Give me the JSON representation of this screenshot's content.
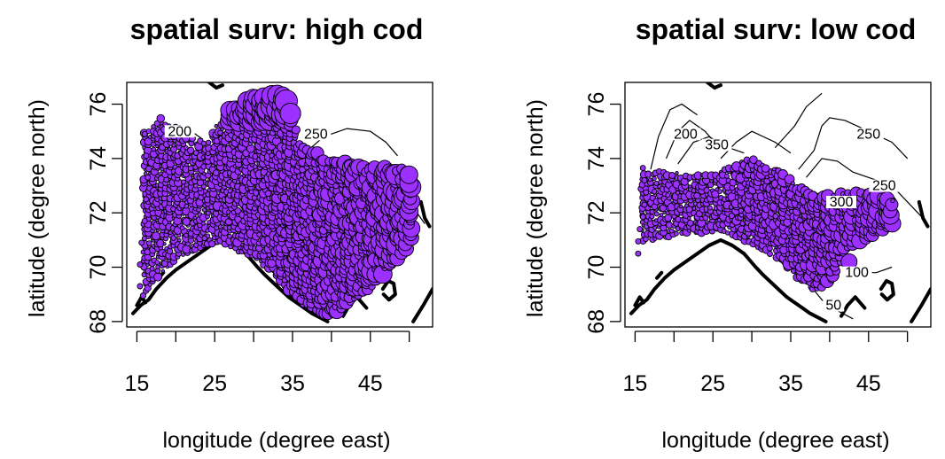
{
  "chart_data": [
    {
      "type": "scatter",
      "title": "spatial surv: high cod",
      "xlabel": "longitude (degree east)",
      "ylabel": "latitude (degree north)",
      "xlim": [
        13.7,
        53.0
      ],
      "ylim": [
        67.8,
        76.8
      ],
      "xticks": [
        15,
        20,
        25,
        30,
        35,
        40,
        45,
        50
      ],
      "xtick_labels": [
        "15",
        "",
        "25",
        "",
        "35",
        "",
        "45",
        ""
      ],
      "yticks": [
        68,
        70,
        72,
        74,
        76
      ],
      "ytick_labels": [
        "68",
        "70",
        "72",
        "74",
        "76"
      ],
      "marker_color": "#9b30ff",
      "contour_labels": [
        {
          "text": "250",
          "x": 38.0,
          "y": 74.8
        },
        {
          "text": "200",
          "x": 20.5,
          "y": 74.9
        }
      ],
      "region": {
        "west_edge": [
          15.4,
          15.4,
          15.6,
          16.0,
          16.2,
          16.4,
          16.2,
          16.0
        ],
        "lon_start": 16.0,
        "lon_end": 50.5,
        "north": [
          [
            16,
            75.0
          ],
          [
            18,
            75.5
          ],
          [
            20,
            75.3
          ],
          [
            22,
            74.8
          ],
          [
            24,
            74.6
          ],
          [
            26,
            75.6
          ],
          [
            28,
            76.0
          ],
          [
            30,
            76.3
          ],
          [
            32,
            76.3
          ],
          [
            34,
            76.4
          ],
          [
            36,
            74.5
          ],
          [
            38,
            74.2
          ],
          [
            40,
            74.0
          ],
          [
            42,
            73.9
          ],
          [
            44,
            73.8
          ],
          [
            46,
            73.7
          ],
          [
            48,
            73.7
          ],
          [
            50.5,
            73.5
          ]
        ],
        "south": [
          [
            16,
            69.0
          ],
          [
            18,
            69.8
          ],
          [
            20,
            70.3
          ],
          [
            22,
            70.6
          ],
          [
            24,
            70.8
          ],
          [
            26,
            71.0
          ],
          [
            28,
            70.6
          ],
          [
            30,
            70.4
          ],
          [
            32,
            70.0
          ],
          [
            34,
            69.4
          ],
          [
            36,
            68.7
          ],
          [
            38,
            68.4
          ],
          [
            40,
            68.3
          ],
          [
            42,
            68.6
          ],
          [
            44,
            69.1
          ],
          [
            46,
            69.5
          ],
          [
            48,
            70.2
          ],
          [
            50.5,
            71.0
          ]
        ]
      }
    },
    {
      "type": "scatter",
      "title": "spatial surv: low cod",
      "xlabel": "longitude (degree east)",
      "ylabel": "latitude (degree north)",
      "xlim": [
        13.7,
        53.0
      ],
      "ylim": [
        67.8,
        76.8
      ],
      "xticks": [
        15,
        20,
        25,
        30,
        35,
        40,
        45,
        50
      ],
      "xtick_labels": [
        "15",
        "",
        "25",
        "",
        "35",
        "",
        "45",
        ""
      ],
      "yticks": [
        68,
        70,
        72,
        74,
        76
      ],
      "ytick_labels": [
        "68",
        "70",
        "72",
        "74",
        "76"
      ],
      "marker_color": "#9b30ff",
      "contour_labels": [
        {
          "text": "250",
          "x": 45.0,
          "y": 74.8
        },
        {
          "text": "200",
          "x": 21.5,
          "y": 74.8
        },
        {
          "text": "350",
          "x": 25.5,
          "y": 74.4
        },
        {
          "text": "300",
          "x": 41.5,
          "y": 72.3
        },
        {
          "text": "250",
          "x": 47.0,
          "y": 72.9
        },
        {
          "text": "100",
          "x": 43.5,
          "y": 69.7
        },
        {
          "text": "50",
          "x": 40.5,
          "y": 68.5
        }
      ],
      "region": {
        "west_edge": [
          15.4,
          15.4,
          15.6,
          16.0,
          16.2,
          16.4,
          16.2,
          16.0
        ],
        "lon_start": 16.0,
        "lon_end": 48.0,
        "north": [
          [
            16,
            73.4
          ],
          [
            18,
            73.6
          ],
          [
            20,
            73.5
          ],
          [
            22,
            73.4
          ],
          [
            24,
            73.4
          ],
          [
            26,
            73.6
          ],
          [
            28,
            73.8
          ],
          [
            30,
            74.0
          ],
          [
            32,
            73.8
          ],
          [
            34,
            73.5
          ],
          [
            36,
            73.0
          ],
          [
            38,
            72.7
          ],
          [
            40,
            72.7
          ],
          [
            42,
            72.8
          ],
          [
            44,
            72.8
          ],
          [
            46,
            72.7
          ],
          [
            48,
            72.5
          ]
        ],
        "south": [
          [
            16,
            71.0
          ],
          [
            18,
            71.1
          ],
          [
            20,
            71.2
          ],
          [
            22,
            71.3
          ],
          [
            24,
            71.3
          ],
          [
            26,
            71.4
          ],
          [
            28,
            71.2
          ],
          [
            30,
            70.9
          ],
          [
            32,
            70.6
          ],
          [
            34,
            70.2
          ],
          [
            36,
            69.6
          ],
          [
            38,
            69.2
          ],
          [
            40,
            69.4
          ],
          [
            42,
            70.6
          ],
          [
            44,
            71.0
          ],
          [
            46,
            71.2
          ],
          [
            48,
            71.6
          ]
        ],
        "outliers": [
          [
            42.5,
            70.2,
            1.3
          ]
        ]
      }
    }
  ]
}
